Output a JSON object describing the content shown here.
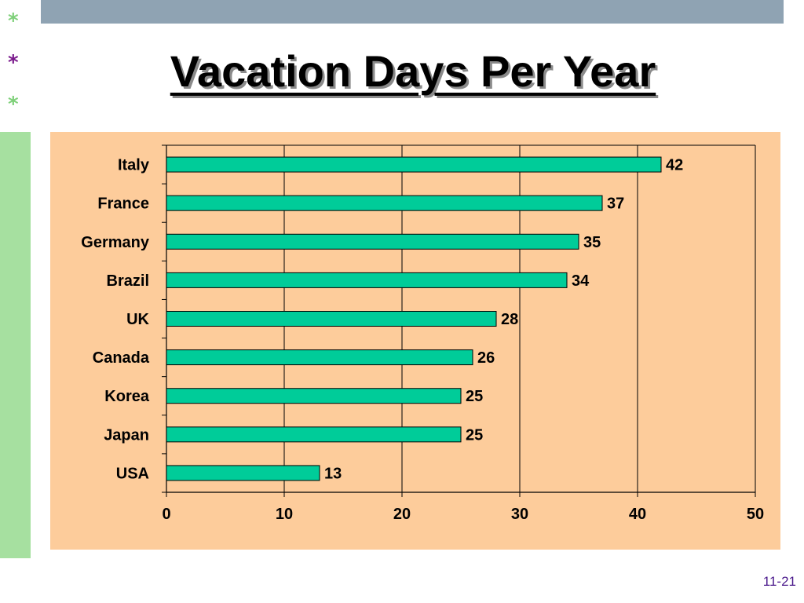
{
  "slide": {
    "title": "Vacation Days Per Year",
    "page_number": "11-21",
    "stars": [
      "*",
      "*",
      "*"
    ]
  },
  "colors": {
    "top_bar": "#8fa3b3",
    "side_strip": "#a6e0a0",
    "chart_background": "#fdcc9b",
    "bar_fill": "#00cc99",
    "star_light": "#7fd07a",
    "star_dark": "#7a1a8c",
    "page_number": "#4b1a8c"
  },
  "chart_data": {
    "type": "bar",
    "orientation": "horizontal",
    "categories": [
      "Italy",
      "France",
      "Germany",
      "Brazil",
      "UK",
      "Canada",
      "Korea",
      "Japan",
      "USA"
    ],
    "values": [
      42,
      37,
      35,
      34,
      28,
      26,
      25,
      25,
      13
    ],
    "data_labels": [
      "42",
      "37",
      "35",
      "34",
      "28",
      "26",
      "25",
      "25",
      "13"
    ],
    "xlim": [
      0,
      50
    ],
    "x_ticks": [
      0,
      10,
      20,
      30,
      40,
      50
    ],
    "x_tick_labels": [
      "0",
      "10",
      "20",
      "30",
      "40",
      "50"
    ],
    "grid": "vertical",
    "legend": "none"
  }
}
